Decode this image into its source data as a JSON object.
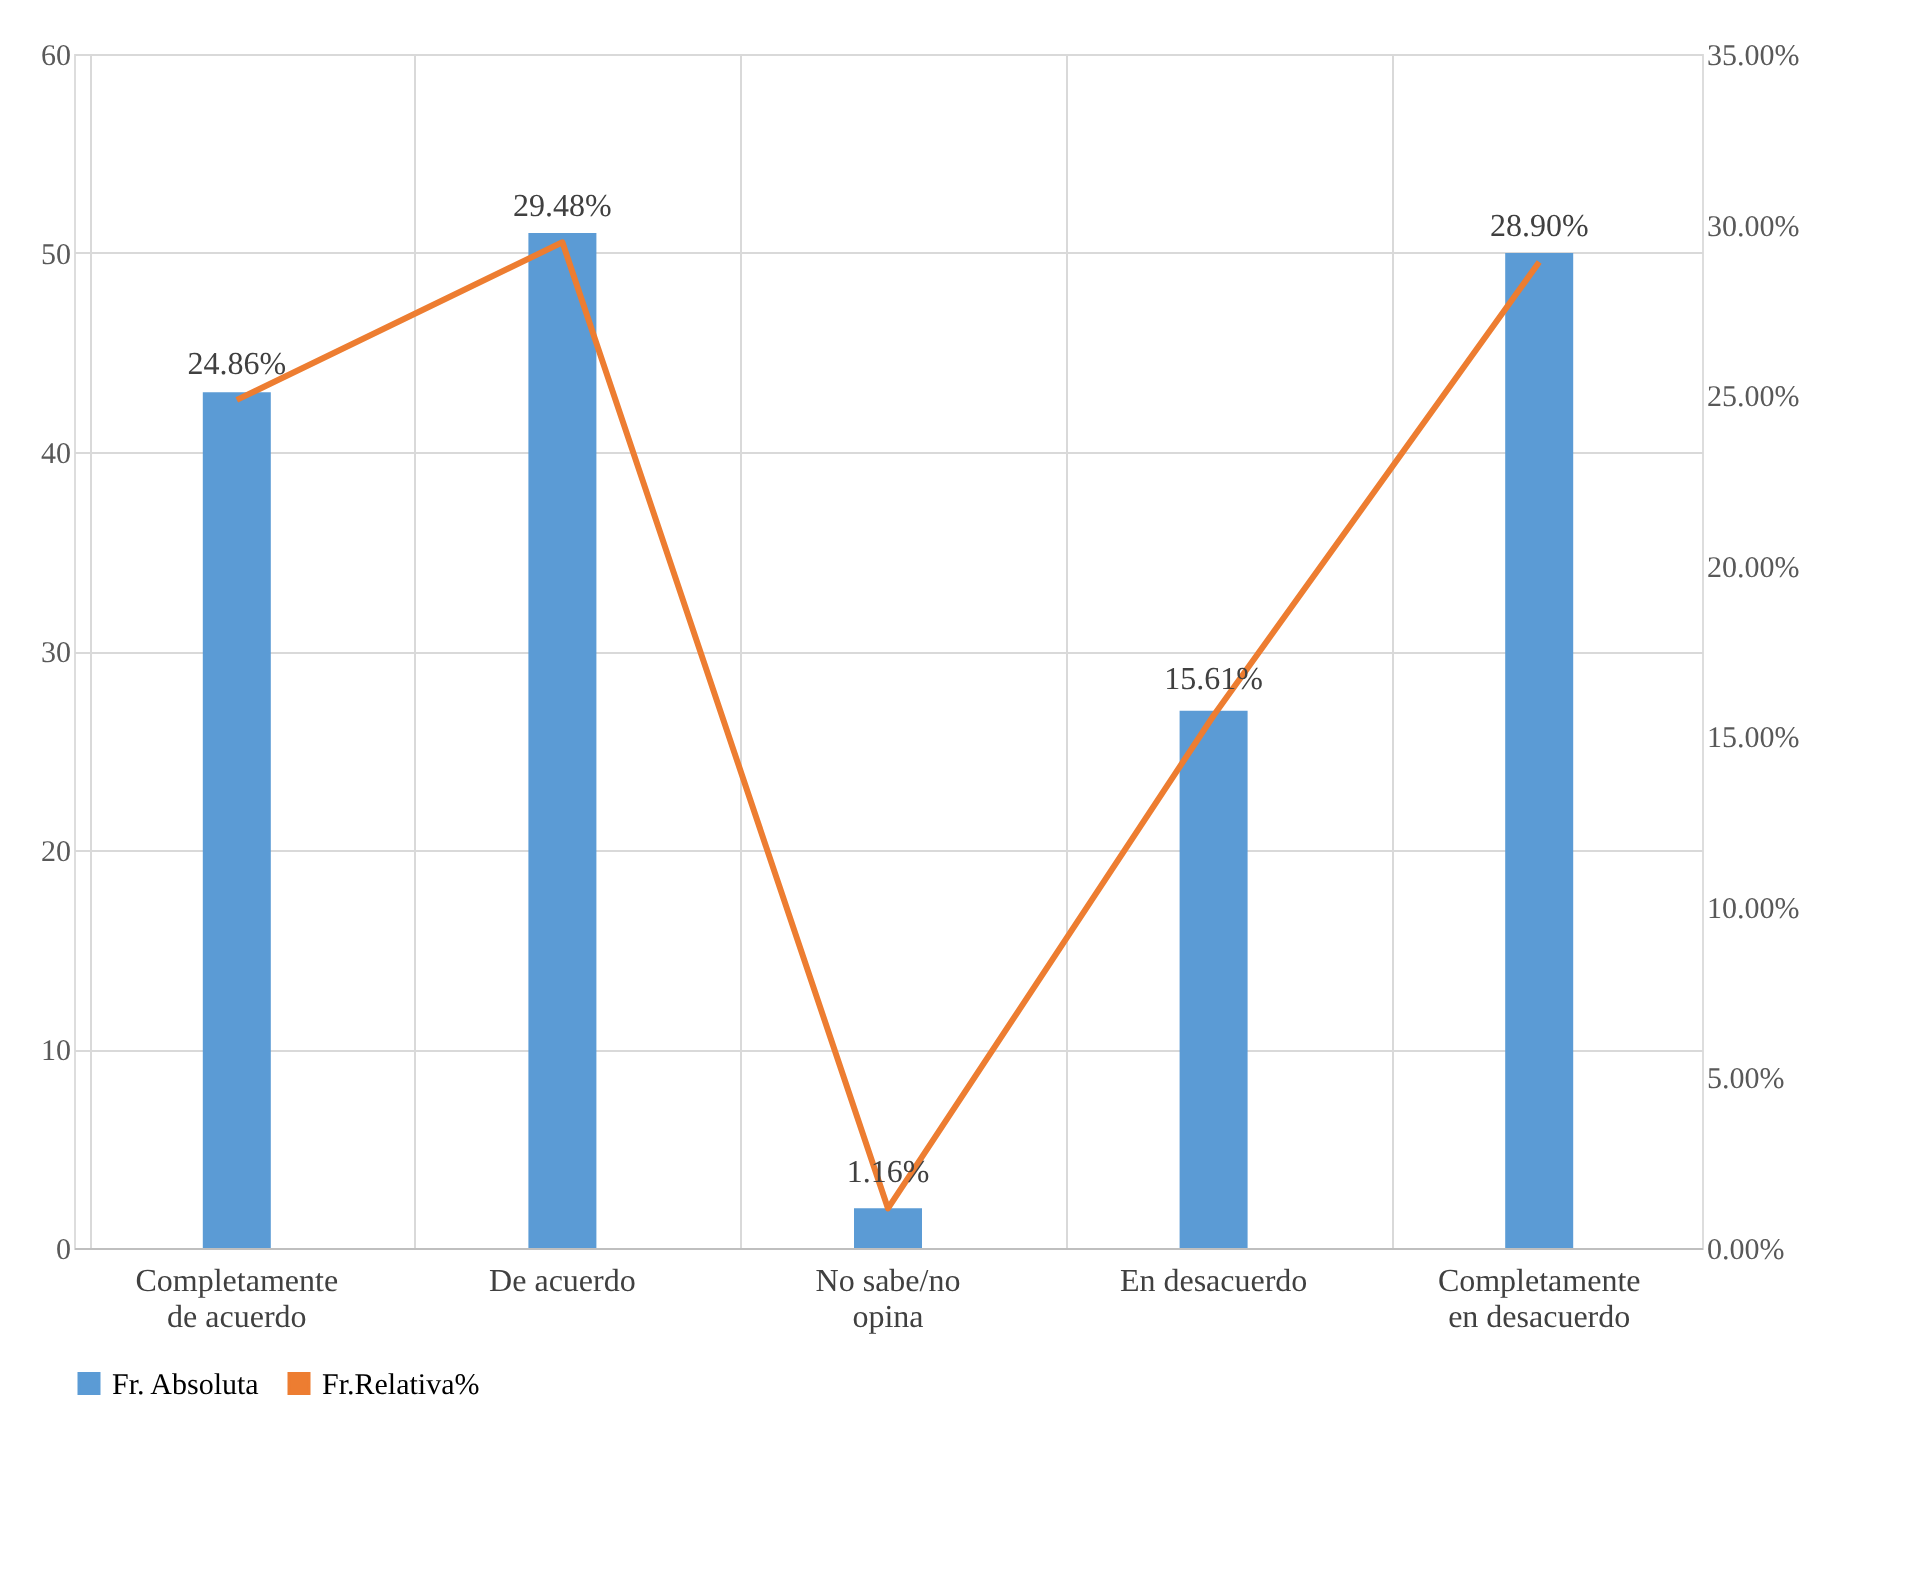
{
  "chart_data": {
    "type": "bar",
    "categories": [
      "Completamente de acuerdo",
      "De acuerdo",
      "No sabe/no opina",
      "En desacuerdo",
      "Completamente en desacuerdo"
    ],
    "series": [
      {
        "name": "Fr. Absoluta",
        "color": "#5b9bd5",
        "values": [
          43,
          51,
          2,
          27,
          50
        ]
      },
      {
        "name": "Fr.Relativa%",
        "type": "line",
        "axis": "y2",
        "color": "#ed7d31",
        "values": [
          24.86,
          29.48,
          1.16,
          15.61,
          28.9
        ],
        "value_labels": [
          "24.86%",
          "29.48%",
          "1.16%",
          "15.61%",
          "28.90%"
        ]
      }
    ],
    "ylim": [
      0,
      60
    ],
    "yticks": [
      0,
      10,
      20,
      30,
      40,
      50,
      60
    ],
    "y2lim": [
      0,
      35
    ],
    "y2ticks": [
      {
        "value": 0,
        "label": "0.00%"
      },
      {
        "value": 5,
        "label": "5.00%"
      },
      {
        "value": 10,
        "label": "10.00%"
      },
      {
        "value": 15,
        "label": "15.00%"
      },
      {
        "value": 20,
        "label": "20.00%"
      },
      {
        "value": 25,
        "label": "25.00%"
      },
      {
        "value": 30,
        "label": "30.00%"
      },
      {
        "value": 35,
        "label": "35.00%"
      }
    ],
    "grid": true,
    "legend": "bottom",
    "marker": "none"
  }
}
